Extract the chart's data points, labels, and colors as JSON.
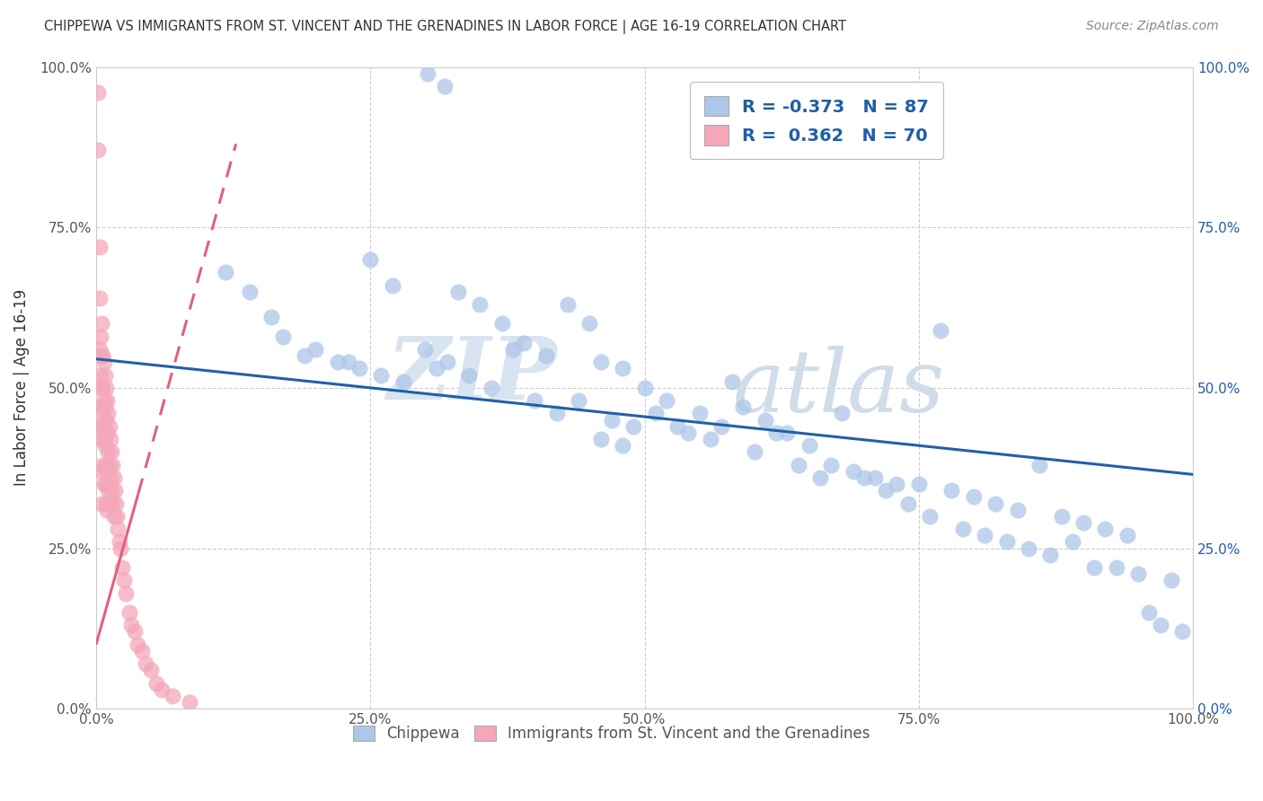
{
  "title": "CHIPPEWA VS IMMIGRANTS FROM ST. VINCENT AND THE GRENADINES IN LABOR FORCE | AGE 16-19 CORRELATION CHART",
  "source": "Source: ZipAtlas.com",
  "ylabel": "In Labor Force | Age 16-19",
  "xlim": [
    0.0,
    1.0
  ],
  "ylim": [
    0.0,
    1.0
  ],
  "x_ticks": [
    0.0,
    0.25,
    0.5,
    0.75,
    1.0
  ],
  "y_ticks": [
    0.0,
    0.25,
    0.5,
    0.75,
    1.0
  ],
  "x_tick_labels": [
    "0.0%",
    "25.0%",
    "50.0%",
    "75.0%",
    "100.0%"
  ],
  "y_tick_labels": [
    "0.0%",
    "25.0%",
    "50.0%",
    "75.0%",
    "100.0%"
  ],
  "chippewa_color": "#aec6e8",
  "immigrant_color": "#f4a7b9",
  "chippewa_R": -0.373,
  "chippewa_N": 87,
  "immigrant_R": 0.362,
  "immigrant_N": 70,
  "trend_blue_color": "#2060a8",
  "trend_pink_color": "#e06080",
  "legend_R_color": "#1f5fa6",
  "background_color": "#ffffff",
  "watermark_zip": "ZIP",
  "watermark_atlas": "atlas",
  "blue_trend_y0": 0.545,
  "blue_trend_y1": 0.365,
  "pink_trend_x0": 0.0,
  "pink_trend_y0": 0.1,
  "pink_trend_x1": 0.085,
  "pink_trend_y1": 0.62,
  "chippewa_x": [
    0.302,
    0.318,
    0.118,
    0.16,
    0.19,
    0.22,
    0.24,
    0.26,
    0.28,
    0.31,
    0.33,
    0.35,
    0.37,
    0.39,
    0.41,
    0.43,
    0.45,
    0.46,
    0.48,
    0.14,
    0.17,
    0.2,
    0.23,
    0.25,
    0.27,
    0.3,
    0.32,
    0.34,
    0.36,
    0.38,
    0.4,
    0.42,
    0.44,
    0.46,
    0.48,
    0.5,
    0.52,
    0.55,
    0.57,
    0.59,
    0.61,
    0.63,
    0.65,
    0.67,
    0.69,
    0.71,
    0.73,
    0.75,
    0.78,
    0.8,
    0.82,
    0.84,
    0.86,
    0.88,
    0.9,
    0.92,
    0.94,
    0.96,
    0.51,
    0.53,
    0.56,
    0.58,
    0.6,
    0.62,
    0.64,
    0.66,
    0.68,
    0.7,
    0.72,
    0.74,
    0.76,
    0.77,
    0.79,
    0.81,
    0.83,
    0.85,
    0.87,
    0.89,
    0.91,
    0.93,
    0.95,
    0.97,
    0.98,
    0.99,
    0.49,
    0.47,
    0.54
  ],
  "chippewa_y": [
    0.99,
    0.97,
    0.68,
    0.61,
    0.55,
    0.54,
    0.53,
    0.52,
    0.51,
    0.53,
    0.65,
    0.63,
    0.6,
    0.57,
    0.55,
    0.63,
    0.6,
    0.54,
    0.53,
    0.65,
    0.58,
    0.56,
    0.54,
    0.7,
    0.66,
    0.56,
    0.54,
    0.52,
    0.5,
    0.56,
    0.48,
    0.46,
    0.48,
    0.42,
    0.41,
    0.5,
    0.48,
    0.46,
    0.44,
    0.47,
    0.45,
    0.43,
    0.41,
    0.38,
    0.37,
    0.36,
    0.35,
    0.35,
    0.34,
    0.33,
    0.32,
    0.31,
    0.38,
    0.3,
    0.29,
    0.28,
    0.27,
    0.15,
    0.46,
    0.44,
    0.42,
    0.51,
    0.4,
    0.43,
    0.38,
    0.36,
    0.46,
    0.36,
    0.34,
    0.32,
    0.3,
    0.59,
    0.28,
    0.27,
    0.26,
    0.25,
    0.24,
    0.26,
    0.22,
    0.22,
    0.21,
    0.13,
    0.2,
    0.12,
    0.44,
    0.45,
    0.43
  ],
  "immigrant_x": [
    0.002,
    0.002,
    0.003,
    0.003,
    0.003,
    0.004,
    0.004,
    0.004,
    0.004,
    0.005,
    0.005,
    0.005,
    0.005,
    0.005,
    0.005,
    0.005,
    0.006,
    0.006,
    0.006,
    0.006,
    0.007,
    0.007,
    0.007,
    0.007,
    0.008,
    0.008,
    0.008,
    0.008,
    0.009,
    0.009,
    0.009,
    0.009,
    0.01,
    0.01,
    0.01,
    0.01,
    0.011,
    0.011,
    0.011,
    0.012,
    0.012,
    0.012,
    0.013,
    0.013,
    0.014,
    0.014,
    0.015,
    0.015,
    0.016,
    0.016,
    0.017,
    0.018,
    0.019,
    0.02,
    0.021,
    0.022,
    0.024,
    0.025,
    0.027,
    0.03,
    0.032,
    0.035,
    0.038,
    0.042,
    0.045,
    0.05,
    0.055,
    0.06,
    0.07,
    0.085
  ],
  "immigrant_y": [
    0.96,
    0.87,
    0.72,
    0.64,
    0.56,
    0.58,
    0.52,
    0.47,
    0.44,
    0.6,
    0.55,
    0.5,
    0.46,
    0.42,
    0.37,
    0.32,
    0.55,
    0.5,
    0.44,
    0.38,
    0.54,
    0.48,
    0.42,
    0.35,
    0.52,
    0.47,
    0.41,
    0.35,
    0.5,
    0.45,
    0.38,
    0.32,
    0.48,
    0.43,
    0.37,
    0.31,
    0.46,
    0.4,
    0.34,
    0.44,
    0.38,
    0.32,
    0.42,
    0.36,
    0.4,
    0.34,
    0.38,
    0.32,
    0.36,
    0.3,
    0.34,
    0.32,
    0.3,
    0.28,
    0.26,
    0.25,
    0.22,
    0.2,
    0.18,
    0.15,
    0.13,
    0.12,
    0.1,
    0.09,
    0.07,
    0.06,
    0.04,
    0.03,
    0.02,
    0.01
  ]
}
